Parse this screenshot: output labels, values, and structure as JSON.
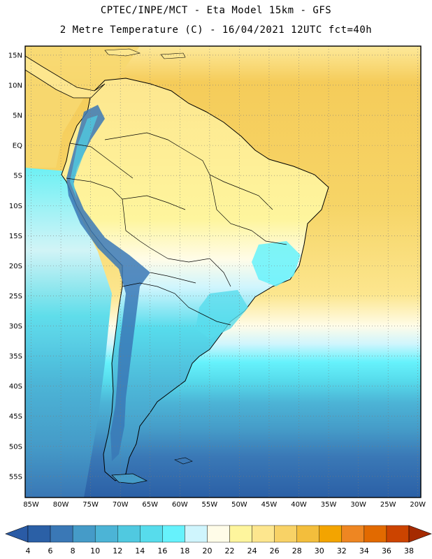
{
  "header": {
    "line1": "CPTEC/INPE/MCT -  Eta Model 15km - GFS",
    "line2": "2 Metre Temperature (C) - 16/04/2021 12UTC fct=40h"
  },
  "axes": {
    "lat_labels": [
      "15N",
      "10N",
      "5N",
      "EQ",
      "5S",
      "10S",
      "15S",
      "20S",
      "25S",
      "30S",
      "35S",
      "40S",
      "45S",
      "50S",
      "55S"
    ],
    "lon_labels": [
      "85W",
      "80W",
      "75W",
      "70W",
      "65W",
      "60W",
      "55W",
      "50W",
      "45W",
      "40W",
      "35W",
      "30W",
      "25W",
      "20W"
    ],
    "lon_range": [
      -86,
      -19.5
    ],
    "lat_range": [
      16.5,
      -58.5
    ],
    "grid": "dotted"
  },
  "colorbar": {
    "ticks": [
      "4",
      "6",
      "8",
      "10",
      "12",
      "14",
      "16",
      "18",
      "20",
      "22",
      "24",
      "26",
      "28",
      "30",
      "32",
      "34",
      "36",
      "38"
    ],
    "colors": [
      "#2b60a6",
      "#3a78b6",
      "#459bc8",
      "#4cb4d6",
      "#50c9e0",
      "#57dcec",
      "#66f2fc",
      "#cff5fd",
      "#fffce8",
      "#fef59d",
      "#fde68e",
      "#f8d266",
      "#f3be3c",
      "#f3a400",
      "#ee8622",
      "#e26a00",
      "#cc4400",
      "#b53200"
    ],
    "under_color": "#2a5ba5",
    "over_color": "#a52a00"
  },
  "map": {
    "ocean_warm": "#f6d366",
    "ocean_mid": "#fdef99",
    "land_warm": "#fdeb95",
    "border_color": "#000000"
  }
}
